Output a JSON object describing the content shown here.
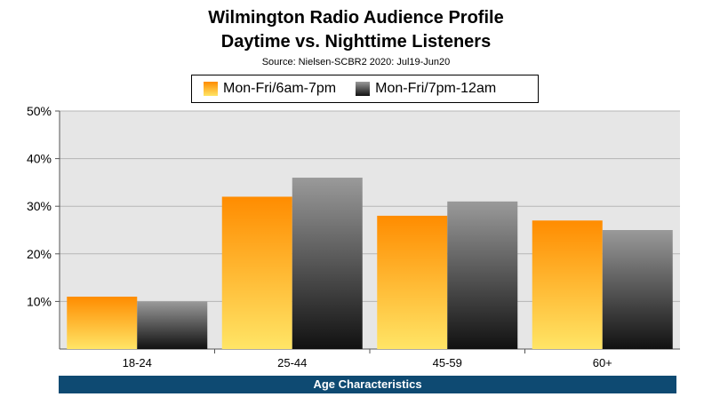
{
  "chart_data": {
    "type": "bar",
    "title": "Wilmington Radio Audience Profile",
    "subtitle": "Daytime vs. Nighttime Listeners",
    "source": "Source: Nielsen-SCBR2 2020: Jul19-Jun20",
    "xlabel": "Age Characteristics",
    "ylabel": "",
    "categories": [
      "18-24",
      "25-44",
      "45-59",
      "60+"
    ],
    "series": [
      {
        "name": "Mon-Fri/6am-7pm",
        "values": [
          11,
          32,
          28,
          27
        ],
        "color_top": "#ff8c00",
        "color_bottom": "#ffe566"
      },
      {
        "name": "Mon-Fri/7pm-12am",
        "values": [
          10,
          36,
          31,
          25
        ],
        "color_top": "#9a9a9a",
        "color_bottom": "#111111"
      }
    ],
    "ylim": [
      0,
      50
    ],
    "yticks": [
      10,
      20,
      30,
      40,
      50
    ],
    "ytick_labels": [
      "10%",
      "20%",
      "30%",
      "40%",
      "50%"
    ],
    "grid": true,
    "legend_position": "top",
    "plot_background": "#e6e6e6",
    "xlabel_bar_color": "#0e4a72"
  }
}
